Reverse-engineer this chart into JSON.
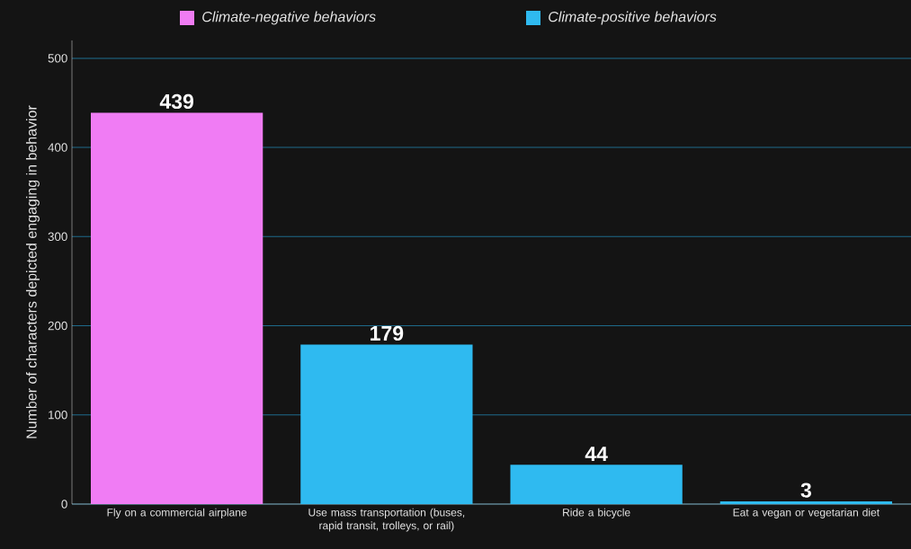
{
  "chart_data": {
    "type": "bar",
    "ylabel": "Number of characters depicted engaging in behavior",
    "categories": [
      "Fly on a commercial airplane",
      "Use mass transportation (buses, rapid transit, trolleys, or rail)",
      "Ride a bicycle",
      "Eat a vegan or vegetarian diet"
    ],
    "series": [
      {
        "name": "Climate-negative behaviors",
        "color": "#f07cf4",
        "values": [
          439,
          null,
          null,
          null
        ]
      },
      {
        "name": "Climate-positive behaviors",
        "color": "#2fbaf0",
        "values": [
          null,
          179,
          44,
          3
        ]
      }
    ],
    "ylim": [
      0,
      520
    ],
    "yticks": [
      0,
      100,
      200,
      300,
      400,
      500
    ],
    "grid": "y",
    "legend": "top",
    "data_labels": true
  }
}
